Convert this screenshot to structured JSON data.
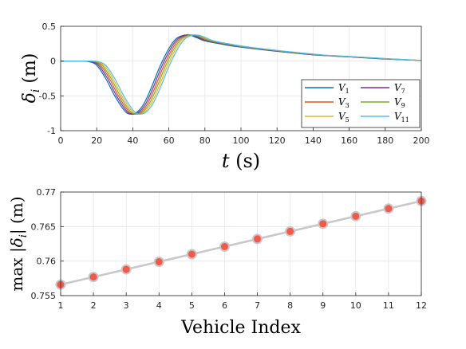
{
  "chart_data": [
    {
      "type": "line",
      "title": "",
      "xlabel": "t (s)",
      "ylabel": "δ_i (m)",
      "xlim": [
        0,
        200
      ],
      "ylim": [
        -1,
        0.5
      ],
      "xticks": [
        "0",
        "20",
        "40",
        "60",
        "80",
        "100",
        "120",
        "140",
        "160",
        "180",
        "200"
      ],
      "yticks": [
        "-1",
        "-0.5",
        "0",
        "0.5"
      ],
      "grid": true,
      "legend": "bottom-right",
      "series": [
        {
          "name": "V1",
          "color": "#0072BD",
          "shift": 0
        },
        {
          "name": "V3",
          "color": "#D95319",
          "shift": 2
        },
        {
          "name": "V5",
          "color": "#EDB120",
          "shift": 4
        },
        {
          "name": "V7",
          "color": "#7E2F8E",
          "shift": 1
        },
        {
          "name": "V9",
          "color": "#77AC30",
          "shift": 3
        },
        {
          "name": "V11",
          "color": "#4DBEEE",
          "shift": 5
        }
      ],
      "base_curve": {
        "x": [
          0,
          12,
          16,
          20,
          25,
          30,
          35,
          38,
          42,
          46,
          50,
          55,
          60,
          64,
          68,
          72,
          76,
          80,
          90,
          100,
          120,
          140,
          160,
          180,
          200
        ],
        "y": [
          0,
          0,
          -0.01,
          -0.06,
          -0.25,
          -0.5,
          -0.7,
          -0.76,
          -0.74,
          -0.62,
          -0.4,
          -0.08,
          0.18,
          0.32,
          0.37,
          0.37,
          0.33,
          0.29,
          0.24,
          0.2,
          0.14,
          0.09,
          0.06,
          0.03,
          0.01
        ]
      }
    },
    {
      "type": "line",
      "title": "",
      "xlabel": "Vehicle Index",
      "ylabel": "max |δ_i| (m)",
      "xlim": [
        1,
        12
      ],
      "ylim": [
        0.755,
        0.77
      ],
      "xticks": [
        "1",
        "2",
        "3",
        "4",
        "5",
        "6",
        "7",
        "8",
        "9",
        "10",
        "11",
        "12"
      ],
      "yticks": [
        "0.755",
        "0.76",
        "0.765",
        "0.77"
      ],
      "grid": true,
      "line_color": "#C8C8C8",
      "marker_color": "#F05A4A",
      "x": [
        1,
        2,
        3,
        4,
        5,
        6,
        7,
        8,
        9,
        10,
        11,
        12
      ],
      "y": [
        0.7566,
        0.7577,
        0.7588,
        0.7599,
        0.761,
        0.7621,
        0.7632,
        0.7643,
        0.7654,
        0.7665,
        0.7676,
        0.7687
      ]
    }
  ]
}
